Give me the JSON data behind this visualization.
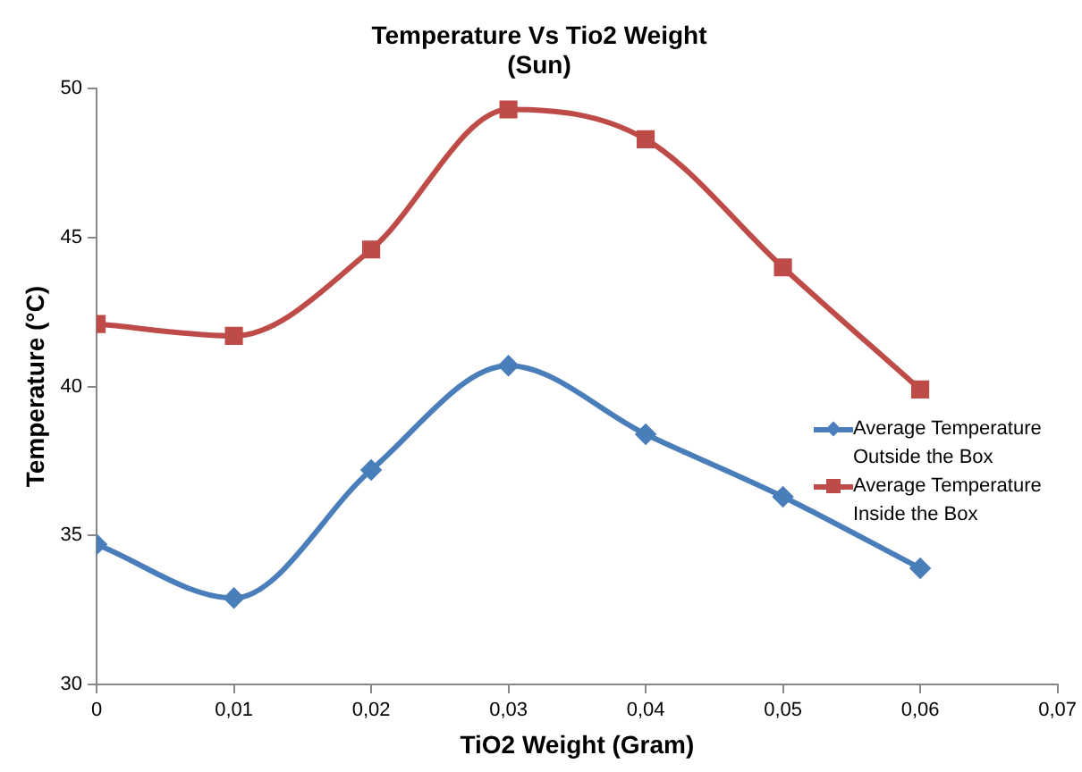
{
  "chart_data": {
    "type": "line",
    "title": "Temperature Vs Tio2 Weight",
    "subtitle": "(Sun)",
    "xlabel": "TiO2 Weight (Gram)",
    "ylabel": "Temperature (°C)",
    "x": [
      0,
      0.01,
      0.02,
      0.03,
      0.04,
      0.05,
      0.06
    ],
    "series": [
      {
        "name": "Average Temperature Outside the Box",
        "color": "#4a7ebb",
        "marker": "diamond",
        "values": [
          34.7,
          32.9,
          37.2,
          40.7,
          38.4,
          36.3,
          33.9
        ]
      },
      {
        "name": "Average Temperature Inside the Box",
        "color": "#be4b48",
        "marker": "square",
        "values": [
          42.1,
          41.7,
          44.6,
          49.3,
          48.3,
          44.0,
          39.9
        ]
      }
    ],
    "xlim": [
      0,
      0.07
    ],
    "xticks": [
      0,
      {
        "value": 0.01,
        "label": "0,01"
      },
      {
        "value": 0.02,
        "label": "0,02"
      },
      {
        "value": 0.03,
        "label": "0,03"
      },
      {
        "value": 0.04,
        "label": "0,04"
      },
      {
        "value": 0.05,
        "label": "0,05"
      },
      {
        "value": 0.06,
        "label": "0,06"
      },
      {
        "value": 0.07,
        "label": "0,07"
      }
    ],
    "ylim": [
      30,
      50
    ],
    "yticks": [
      30,
      35,
      40,
      45,
      50
    ],
    "grid": false,
    "legend": "right"
  }
}
